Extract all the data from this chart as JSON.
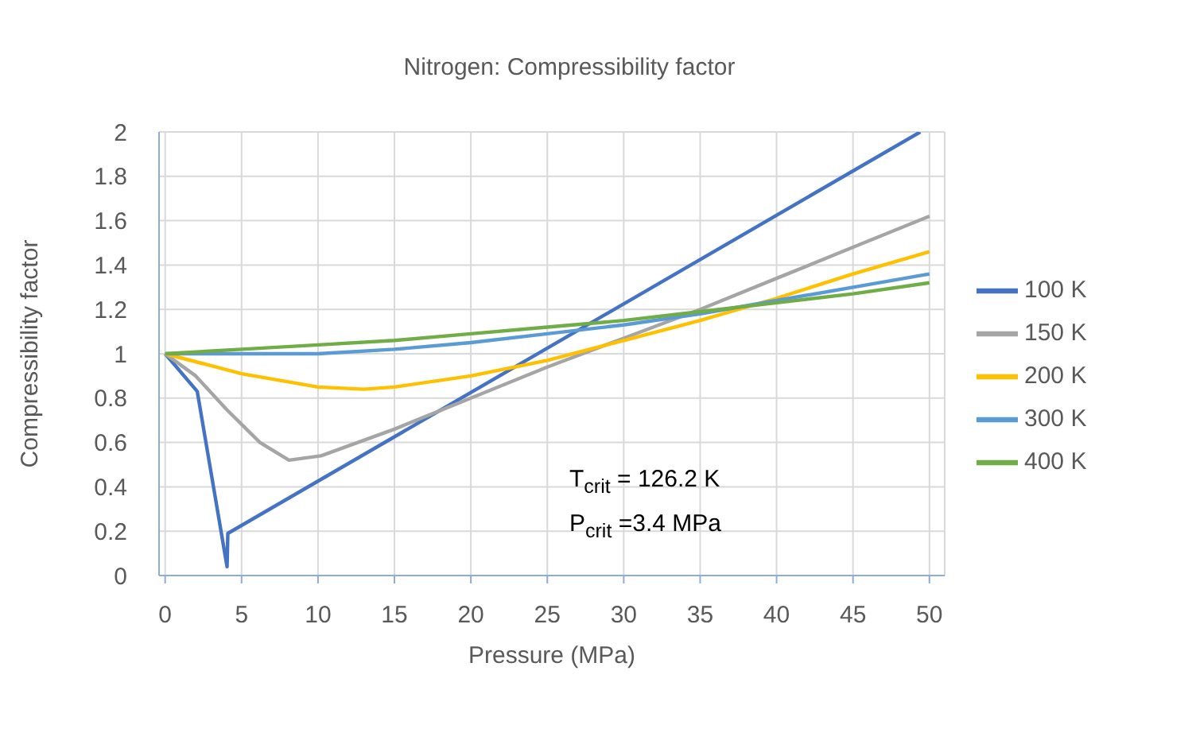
{
  "chart_data": {
    "type": "line",
    "title": "Nitrogen: Compressibility factor",
    "xlabel": "Pressure (MPa)",
    "ylabel": "Compressibility factor",
    "xlim": [
      -0.4,
      51
    ],
    "xticks": [
      0,
      5,
      10,
      15,
      20,
      25,
      30,
      35,
      40,
      45,
      50
    ],
    "ylim": [
      0,
      2
    ],
    "yticks": [
      0,
      0.2,
      0.4,
      0.6,
      0.8,
      1,
      1.2,
      1.4,
      1.6,
      1.8,
      2
    ],
    "grid": true,
    "legend": "right",
    "marker": "none",
    "line_style": "solid",
    "annotations": [
      "T$_{crit}$ = 126.2 K",
      "P$_{crit}$ =3.4 MPa"
    ],
    "series": [
      {
        "name": "100 K",
        "color": "#4472c4",
        "x": [
          0,
          2.1,
          4.05,
          4.1,
          49.4
        ],
        "values": [
          1,
          0.83,
          0.04,
          0.19,
          2
        ]
      },
      {
        "name": "150 K",
        "color": "#a5a5a5",
        "x": [
          0,
          2,
          4,
          6.2,
          8.1,
          10.2,
          15,
          20,
          25,
          30,
          35,
          40,
          45,
          50
        ],
        "values": [
          1,
          0.9,
          0.75,
          0.6,
          0.52,
          0.54,
          0.66,
          0.8,
          0.94,
          1.07,
          1.2,
          1.34,
          1.48,
          1.62
        ]
      },
      {
        "name": "200 K",
        "color": "#ffc000",
        "x": [
          0,
          5,
          10,
          13,
          15,
          20,
          25,
          30,
          35,
          40,
          45,
          50
        ],
        "values": [
          1,
          0.91,
          0.85,
          0.84,
          0.85,
          0.9,
          0.97,
          1.06,
          1.15,
          1.25,
          1.36,
          1.46
        ]
      },
      {
        "name": "300 K",
        "color": "#5b9bd5",
        "x": [
          0,
          10,
          15,
          20,
          25,
          30,
          35,
          40,
          45,
          50
        ],
        "values": [
          1,
          1,
          1.02,
          1.05,
          1.09,
          1.13,
          1.18,
          1.24,
          1.3,
          1.36
        ]
      },
      {
        "name": "400 K",
        "color": "#70ad47",
        "x": [
          0,
          5,
          10,
          15,
          20,
          25,
          30,
          35,
          40,
          45,
          50
        ],
        "values": [
          1,
          1.02,
          1.04,
          1.06,
          1.09,
          1.12,
          1.15,
          1.19,
          1.23,
          1.27,
          1.32
        ]
      }
    ]
  }
}
